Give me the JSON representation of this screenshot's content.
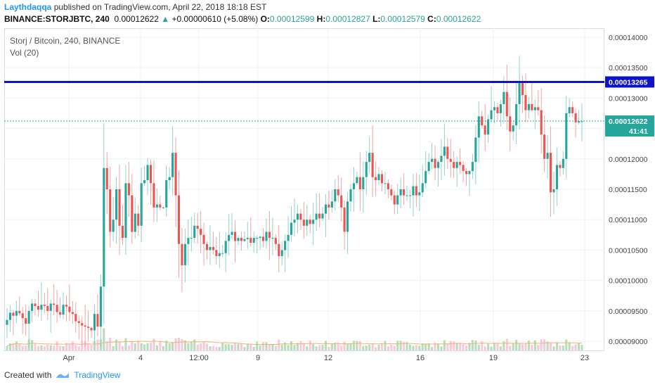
{
  "header": {
    "author": "Laythdaqqa",
    "published_text": "published on TradingView.com, April 22, 2018 18:18 EST",
    "symbol": "BINANCE:STORJBTC, 240",
    "last": "0.00012622",
    "change": "+0.00000610 (+5.08%)",
    "o_label": "O:",
    "o_value": "0.00012599",
    "h_label": "H:",
    "h_value": "0.00012827",
    "l_label": "L:",
    "l_value": "0.00012579",
    "c_label": "C:",
    "c_value": "0.00012622"
  },
  "legend": {
    "title": "Storj / Bitcoin, 240, BINANCE",
    "volume": "Vol (20)"
  },
  "footer": {
    "created_with": "Created with",
    "brand": "TradingView"
  },
  "colors": {
    "up": "#26a69a",
    "down": "#ef5350",
    "up_light": "#a5d6a7",
    "down_light": "#f8bbd0",
    "grid": "#eef1f5",
    "hline": "#0d14c8",
    "ma": "#f0b26b"
  },
  "chart_data": {
    "type": "candlestick",
    "title": "Storj / Bitcoin, 240, BINANCE",
    "y_ticks": [
      "0.00009000",
      "0.00009500",
      "0.00010000",
      "0.00010500",
      "0.00011000",
      "0.00011500",
      "0.00012000",
      "0.00012500",
      "0.00013000",
      "0.00013500",
      "0.00014000"
    ],
    "ylim": [
      8.85e-05,
      0.0001415
    ],
    "x_ticks": [
      "Apr",
      "4",
      "12:00",
      "9",
      "12",
      "16",
      "19",
      "23"
    ],
    "horizontal_line": {
      "value": 0.00013265,
      "label": "0.00013265"
    },
    "last_price": {
      "value": 0.00012622,
      "label": "0.00012622",
      "countdown": "41:41"
    },
    "closes": [
      9.35e-05,
      9.47e-05,
      9.42e-05,
      9.5e-05,
      9.46e-05,
      9.38e-05,
      9.29e-05,
      9.5e-05,
      9.62e-05,
      9.58e-05,
      9.52e-05,
      9.6e-05,
      9.58e-05,
      9.5e-05,
      9.62e-05,
      9.6e-05,
      9.48e-05,
      9.44e-05,
      9.6e-05,
      9.57e-05,
      9.48e-05,
      9.45e-05,
      9.33e-05,
      9.3e-05,
      9.26e-05,
      9.24e-05,
      9.22e-05,
      9.18e-05,
      9.45e-05,
      9.24e-05,
      9.9e-05,
      0.0001185,
      0.000115,
      0.000108,
      0.00011,
      0.000115,
      0.000109,
      0.000107,
      0.000116,
      0.000114,
      0.000108,
      0.000111,
      0.000109,
      0.000116,
      0.0001165,
      0.000119,
      0.000116,
      0.000112,
      0.0001125,
      0.000112,
      0.000112,
      0.0001165,
      0.000117,
      0.000121,
      0.000114,
      0.000106,
      0.0001025,
      0.000106,
      0.000107,
      0.000107,
      0.000109,
      0.0001085,
      0.0001075,
      0.000106,
      0.000105,
      0.0001055,
      0.000105,
      0.000104,
      0.0001045,
      0.0001045,
      0.0001065,
      0.0001075,
      0.000108,
      0.0001065,
      0.000107,
      0.0001065,
      0.0001068,
      0.000107,
      0.0001062,
      0.000107,
      0.000107,
      0.0001072,
      0.0001065,
      0.000108,
      0.000107,
      0.000107,
      0.000106,
      0.000104,
      0.000105,
      0.0001065,
      0.0001075,
      0.0001095,
      0.00011,
      0.000111,
      0.00011,
      0.000109,
      0.00011,
      0.0001093,
      0.00011,
      0.000111,
      0.0001102,
      0.000111,
      0.0001125,
      0.000112,
      0.000113,
      0.000115,
      0.000114,
      0.000112,
      0.000108,
      0.000113,
      0.000115,
      0.000116,
      0.000117,
      0.000115,
      0.000117,
      0.0001195,
      0.000121,
      0.000117,
      0.0001165,
      0.0001175,
      0.000116,
      0.000116,
      0.000115,
      0.000114,
      0.0001125,
      0.000114,
      0.000115,
      0.000114,
      0.000114,
      0.000114,
      0.0001155,
      0.000114,
      0.0001145,
      0.000116,
      0.000118,
      0.0001195,
      0.00012,
      0.0001185,
      0.0001195,
      0.0001205,
      0.000122,
      0.00012,
      0.0001195,
      0.0001185,
      0.0001195,
      0.000119,
      0.000118,
      0.0001175,
      0.000118,
      0.0001195,
      0.0001235,
      0.000127,
      0.0001255,
      0.000124,
      0.0001265,
      0.000128,
      0.0001285,
      0.0001275,
      0.000129,
      0.000131,
      0.000127,
      0.0001245,
      0.0001255,
      0.000129,
      0.0001325,
      0.0001305,
      0.000128,
      0.000129,
      0.000128,
      0.0001285,
      0.000128,
      0.000124,
      0.00012,
      0.000121,
      0.0001145,
      0.000115,
      0.000119,
      0.0001185,
      0.00012,
      0.0001275,
      0.0001285,
      0.0001275,
      0.000126,
      0.0001262,
      0.0001262
    ],
    "volume_max": 100
  }
}
